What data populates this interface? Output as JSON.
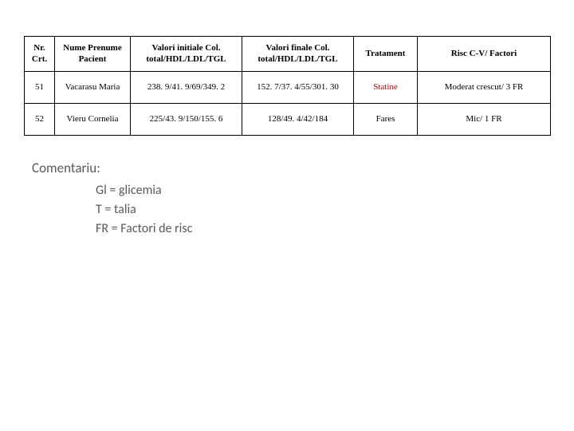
{
  "table": {
    "columns": [
      "Nr. Crt.",
      "Nume Prenume Pacient",
      "Valori initiale Col. total/HDL/LDL/TGL",
      "Valori finale Col. total/HDL/LDL/TGL",
      "Tratament",
      "Risc C-V/ Factori"
    ],
    "rows": [
      {
        "nr": "51",
        "nume": "Vacarasu Maria",
        "vi": "238. 9/41. 9/69/349. 2",
        "vf": "152. 7/37. 4/55/301. 30",
        "tratament": "Statine",
        "tratament_red": true,
        "risc": "Moderat crescut/ 3 FR"
      },
      {
        "nr": "52",
        "nume": "Vieru Cornelia",
        "vi": "225/43. 9/150/155. 6",
        "vf": "128/49. 4/42/184",
        "tratament": "Fares",
        "tratament_red": false,
        "risc": "Mic/ 1 FR"
      }
    ]
  },
  "comments": {
    "title": "Comentariu:",
    "lines": [
      "Gl = glicemia",
      "T = talia",
      "FR = Factori de risc"
    ]
  },
  "colors": {
    "red": "#c00000",
    "comment_gray": "#595959",
    "border": "#000000",
    "bg": "#ffffff"
  }
}
